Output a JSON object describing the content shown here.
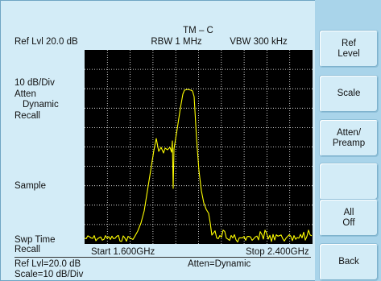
{
  "screen": {
    "title": "TM – C",
    "ref_level": "Ref Lvl 20.0 dB",
    "rbw": "RBW 1 MHz",
    "vbw": "VBW 300 kHz",
    "left_labels": {
      "scale": "10 dB/Div",
      "atten": "Atten",
      "dynamic": "Dynamic",
      "recall": "Recall",
      "sample": "Sample",
      "swp_time": "Swp Time",
      "recall2": "Recall"
    },
    "start": "Start   1.600GHz",
    "stop": "Stop   2.400GHz",
    "footer": {
      "ref_lvl": "Ref Lvl=20.0 dB",
      "scale": "Scale=10 dB/Div",
      "atten": "Atten=Dynamic"
    }
  },
  "softkeys": [
    "Ref\nLevel",
    "Scale",
    "Atten/\nPreamp",
    "",
    "All\nOff",
    "Back"
  ],
  "colors": {
    "background": "#d3ecf7",
    "sidebar": "#a9d4ea",
    "plot_bg": "#000000",
    "grid": "#ffffff",
    "trace": "#ffff00"
  }
}
